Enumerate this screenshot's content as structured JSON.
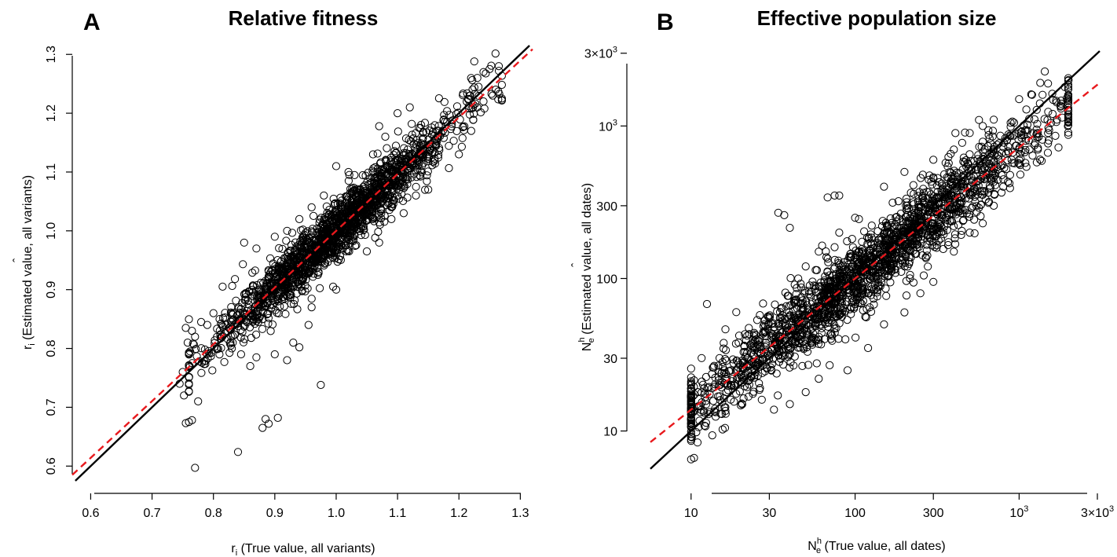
{
  "chart_data": [
    {
      "type": "scatter",
      "panel": "A",
      "title": "Relative fitness",
      "xlabel": {
        "main": "r",
        "sub": "i",
        "rest": " (True value, all variants)"
      },
      "ylabel": {
        "main": "r",
        "hat": "ˆ",
        "sub": "i",
        "rest": " (Estimated value, all variants)"
      },
      "xscale": "linear",
      "yscale": "linear",
      "xlim": [
        0.57,
        1.32
      ],
      "ylim": [
        0.575,
        1.315
      ],
      "xticks": [
        0.6,
        0.7,
        0.8,
        0.9,
        1.0,
        1.1,
        1.2,
        1.3
      ],
      "xtick_labels": [
        "0.6",
        "0.7",
        "0.8",
        "0.9",
        "1.0",
        "1.1",
        "1.2",
        "1.3"
      ],
      "yticks": [
        0.6,
        0.7,
        0.8,
        0.9,
        1.0,
        1.1,
        1.2,
        1.3
      ],
      "ytick_labels": [
        "0.6",
        "0.7",
        "0.8",
        "0.9",
        "1.0",
        "1.1",
        "1.2",
        "1.3"
      ],
      "grid": false,
      "legend": "none",
      "lines": [
        {
          "kind": "identity",
          "color": "#000000",
          "style": "solid",
          "slope": 1.0,
          "intercept": 0.0
        },
        {
          "kind": "regression",
          "color": "#e8191d",
          "style": "dashed",
          "slope": 0.965,
          "intercept": 0.035
        }
      ],
      "points": [
        [
          0.77,
          0.597
        ],
        [
          0.84,
          0.624
        ],
        [
          0.88,
          0.665
        ],
        [
          0.885,
          0.68
        ],
        [
          0.89,
          0.672
        ],
        [
          0.905,
          0.682
        ],
        [
          0.975,
          0.738
        ],
        [
          0.755,
          0.673
        ],
        [
          0.76,
          0.675
        ],
        [
          0.765,
          0.678
        ],
        [
          0.775,
          0.71
        ],
        [
          0.752,
          0.72
        ],
        [
          0.745,
          0.74
        ],
        [
          0.75,
          0.76
        ],
        [
          0.762,
          0.795
        ],
        [
          0.758,
          0.81
        ],
        [
          0.765,
          0.83
        ],
        [
          0.755,
          0.835
        ],
        [
          0.77,
          0.82
        ],
        [
          0.78,
          0.845
        ],
        [
          0.79,
          0.84
        ],
        [
          0.8,
          0.86
        ],
        [
          0.81,
          0.85
        ],
        [
          0.82,
          0.84
        ],
        [
          0.832,
          0.86
        ],
        [
          0.845,
          0.79
        ],
        [
          0.86,
          0.77
        ],
        [
          0.87,
          0.785
        ],
        [
          0.9,
          0.79
        ],
        [
          0.92,
          0.78
        ],
        [
          0.93,
          0.81
        ],
        [
          0.94,
          0.802
        ],
        [
          0.955,
          0.84
        ],
        [
          0.96,
          0.87
        ],
        [
          0.995,
          0.905
        ],
        [
          1.0,
          0.9
        ],
        [
          0.87,
          0.97
        ],
        [
          0.85,
          0.98
        ],
        [
          0.9,
          0.99
        ],
        [
          0.92,
          1.0
        ],
        [
          0.94,
          1.02
        ],
        [
          0.96,
          1.04
        ],
        [
          0.98,
          1.06
        ],
        [
          1.0,
          1.11
        ],
        [
          1.02,
          1.1
        ],
        [
          1.06,
          1.13
        ],
        [
          1.07,
          1.178
        ],
        [
          1.08,
          1.16
        ],
        [
          1.1,
          1.2
        ],
        [
          1.12,
          1.21
        ],
        [
          1.05,
          0.965
        ],
        [
          1.07,
          0.98
        ],
        [
          1.09,
          1.02
        ],
        [
          1.11,
          1.03
        ],
        [
          1.13,
          1.06
        ],
        [
          1.15,
          1.07
        ],
        [
          1.2,
          1.13
        ],
        [
          1.22,
          1.17
        ],
        [
          1.225,
          1.288
        ],
        [
          1.23,
          1.26
        ],
        [
          1.24,
          1.27
        ],
        [
          1.25,
          1.275
        ],
        [
          1.265,
          1.28
        ],
        [
          1.27,
          1.225
        ],
        [
          1.26,
          1.24
        ],
        [
          1.255,
          1.23
        ],
        [
          1.24,
          1.22
        ],
        [
          1.23,
          1.21
        ],
        [
          0.835,
          0.918
        ],
        [
          0.815,
          0.905
        ]
      ],
      "cloud": {
        "n": 1800,
        "x_mean": 1.0,
        "x_sd": 0.095,
        "x_range": [
          0.76,
          1.27
        ],
        "resid_sd": 0.024,
        "seed": 11
      }
    },
    {
      "type": "scatter",
      "panel": "B",
      "title": "Effective population size",
      "xlabel": {
        "main": "N",
        "sup": "h",
        "sub": "e",
        "rest": " (True value, all dates)"
      },
      "ylabel": {
        "main": "N",
        "hat": "ˆ",
        "sup": "h",
        "sub": "e",
        "rest": " (Estimated value, all dates)"
      },
      "xscale": "log",
      "yscale": "log",
      "xlim": [
        5.65,
        3100
      ],
      "ylim": [
        3.9,
        3250
      ],
      "xticks": [
        10,
        30,
        100,
        300,
        1000,
        3000
      ],
      "xtick_labels": [
        "10",
        "30",
        "100",
        "300",
        "10^3",
        "3×10^3"
      ],
      "yticks": [
        10,
        30,
        100,
        300,
        1000,
        3000
      ],
      "ytick_labels": [
        "10",
        "30",
        "100",
        "300",
        "10^3",
        "3×10^3"
      ],
      "grid": false,
      "legend": "none",
      "lines": [
        {
          "kind": "identity",
          "color": "#000000",
          "style": "solid",
          "slope": 1.0,
          "intercept": 0.0
        },
        {
          "kind": "regression",
          "color": "#e8191d",
          "style": "dashed",
          "slope": 0.86,
          "intercept": 0.28
        }
      ],
      "points": [
        [
          12.5,
          68
        ],
        [
          34,
          270
        ],
        [
          37,
          260
        ],
        [
          40,
          215
        ],
        [
          68,
          340
        ],
        [
          75,
          350
        ],
        [
          80,
          350
        ],
        [
          10.2,
          14
        ],
        [
          10.5,
          13.5
        ],
        [
          11,
          14.5
        ],
        [
          12,
          13.2
        ],
        [
          13,
          13.3
        ],
        [
          14,
          14
        ],
        [
          11,
          18
        ],
        [
          12,
          19
        ],
        [
          10.3,
          17
        ],
        [
          32,
          13.8
        ],
        [
          40,
          15
        ],
        [
          50,
          18
        ],
        [
          60,
          22
        ],
        [
          70,
          27
        ],
        [
          90,
          25
        ],
        [
          120,
          35
        ],
        [
          150,
          50
        ],
        [
          200,
          60
        ],
        [
          250,
          80
        ],
        [
          300,
          95
        ],
        [
          400,
          150
        ],
        [
          500,
          200
        ],
        [
          600,
          230
        ],
        [
          700,
          300
        ],
        [
          800,
          400
        ],
        [
          900,
          600
        ],
        [
          1000,
          700
        ],
        [
          1100,
          800
        ],
        [
          1300,
          900
        ],
        [
          1600,
          1200
        ],
        [
          1800,
          1400
        ],
        [
          1900,
          1800
        ],
        [
          2000,
          2000
        ],
        [
          1500,
          1900
        ],
        [
          1200,
          1600
        ],
        [
          1000,
          1500
        ],
        [
          700,
          1100
        ],
        [
          500,
          900
        ],
        [
          600,
          1000
        ],
        [
          400,
          700
        ],
        [
          300,
          600
        ],
        [
          200,
          500
        ],
        [
          150,
          400
        ],
        [
          100,
          250
        ],
        [
          80,
          200
        ],
        [
          60,
          150
        ],
        [
          50,
          120
        ],
        [
          45,
          100
        ],
        [
          300,
          230
        ],
        [
          700,
          430
        ],
        [
          1000,
          600
        ],
        [
          1300,
          700
        ],
        [
          1500,
          900
        ],
        [
          1700,
          1100
        ],
        [
          1800,
          1300
        ],
        [
          18,
          22
        ],
        [
          20,
          25
        ],
        [
          22,
          30
        ],
        [
          25,
          40
        ],
        [
          28,
          50
        ],
        [
          24,
          35
        ],
        [
          16,
          25
        ],
        [
          15,
          20
        ]
      ],
      "cloud": {
        "n": 2000,
        "logx_mean": 2.05,
        "logx_sd": 0.58,
        "logx_range": [
          1.0,
          3.3
        ],
        "resid_sd": 0.12,
        "seed": 23
      }
    }
  ]
}
